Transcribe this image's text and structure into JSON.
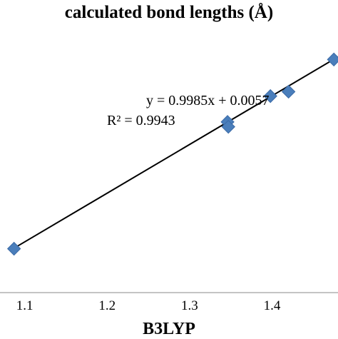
{
  "chart_data": {
    "type": "scatter",
    "title": "calculated bond lengths (Å)",
    "xlabel": "B3LYP",
    "ylabel": "",
    "xlim": [
      1.07,
      1.48
    ],
    "ylim": [
      1.0,
      1.6
    ],
    "x_ticks": [
      "1.1",
      "1.2",
      "1.3",
      "1.4"
    ],
    "x_tick_values": [
      1.1,
      1.2,
      1.3,
      1.4
    ],
    "grid": false,
    "marker_color": "#4a7ebb",
    "trendline_color": "#000000",
    "series": [
      {
        "x": [
          1.087,
          1.346,
          1.347,
          1.398,
          1.42,
          1.475
        ],
        "y": [
          1.09,
          1.35,
          1.34,
          1.403,
          1.412,
          1.478
        ]
      }
    ],
    "trendline": {
      "slope": 0.9985,
      "intercept": 0.0057,
      "equation": "y = 0.9985x + 0.0057",
      "r2": "R² = 0.9943"
    }
  }
}
